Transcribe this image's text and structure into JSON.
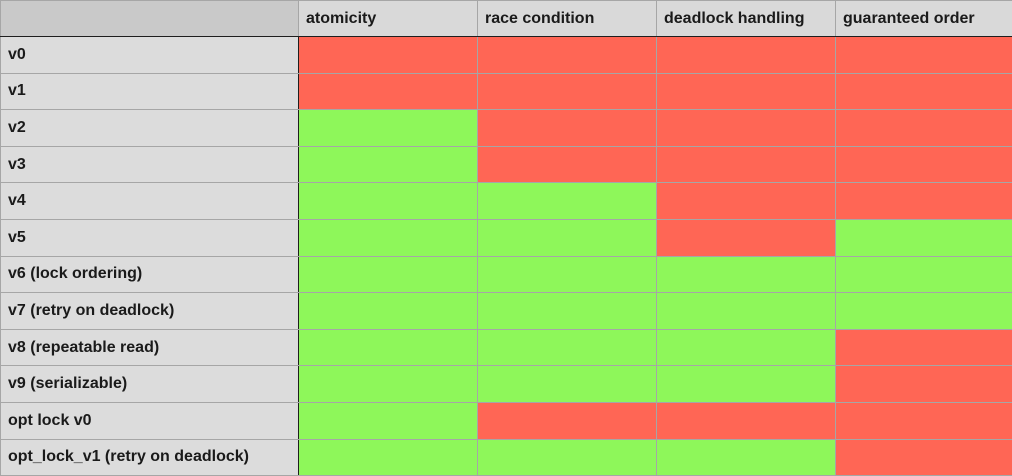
{
  "colors": {
    "pass": "#8ef75a",
    "fail": "#ff6655",
    "header_bg": "#d9d9d9",
    "grid_line": "#a6a6a6"
  },
  "table": {
    "corner_label": "",
    "columns": [
      "atomicity",
      "race condition",
      "deadlock handling",
      "guaranteed order"
    ],
    "rows": [
      {
        "label": "v0",
        "cells": [
          "fail",
          "fail",
          "fail",
          "fail"
        ]
      },
      {
        "label": "v1",
        "cells": [
          "fail",
          "fail",
          "fail",
          "fail"
        ]
      },
      {
        "label": "v2",
        "cells": [
          "pass",
          "fail",
          "fail",
          "fail"
        ]
      },
      {
        "label": "v3",
        "cells": [
          "pass",
          "fail",
          "fail",
          "fail"
        ]
      },
      {
        "label": "v4",
        "cells": [
          "pass",
          "pass",
          "fail",
          "fail"
        ]
      },
      {
        "label": "v5",
        "cells": [
          "pass",
          "pass",
          "fail",
          "pass"
        ]
      },
      {
        "label": "v6 (lock ordering)",
        "cells": [
          "pass",
          "pass",
          "pass",
          "pass"
        ]
      },
      {
        "label": "v7 (retry on deadlock)",
        "cells": [
          "pass",
          "pass",
          "pass",
          "pass"
        ]
      },
      {
        "label": "v8 (repeatable read)",
        "cells": [
          "pass",
          "pass",
          "pass",
          "fail"
        ]
      },
      {
        "label": "v9 (serializable)",
        "cells": [
          "pass",
          "pass",
          "pass",
          "fail"
        ]
      },
      {
        "label": "opt lock v0",
        "cells": [
          "pass",
          "fail",
          "fail",
          "fail"
        ]
      },
      {
        "label": "opt_lock_v1 (retry on deadlock)",
        "cells": [
          "pass",
          "pass",
          "pass",
          "fail"
        ]
      }
    ]
  }
}
